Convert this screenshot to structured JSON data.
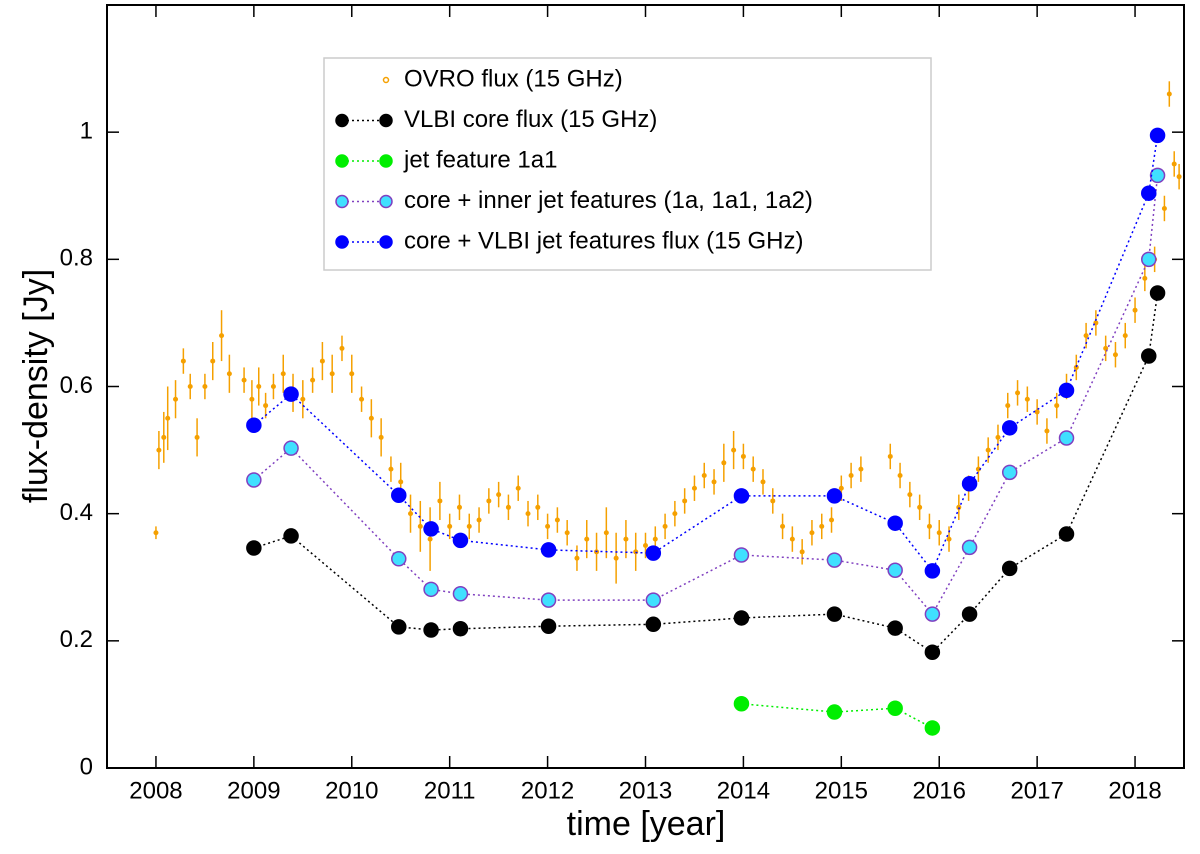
{
  "chart_data": {
    "type": "scatter",
    "xlabel": "time [year]",
    "ylabel": "flux-density [Jy]",
    "xlim": [
      2007.5,
      2018.5
    ],
    "ylim": [
      0,
      1.2
    ],
    "xticks": [
      2008,
      2009,
      2010,
      2011,
      2012,
      2013,
      2014,
      2015,
      2016,
      2017,
      2018
    ],
    "yticks": [
      0,
      0.2,
      0.4,
      0.6,
      0.8,
      1
    ],
    "legend": "upper center",
    "series": [
      {
        "name": "OVRO flux (15 GHz)",
        "color": "#f5a000",
        "marker": "errorbar",
        "x": [
          2008.0,
          2008.03,
          2008.08,
          2008.12,
          2008.2,
          2008.28,
          2008.35,
          2008.42,
          2008.5,
          2008.58,
          2008.67,
          2008.75,
          2008.9,
          2008.98,
          2009.05,
          2009.12,
          2009.2,
          2009.3,
          2009.4,
          2009.5,
          2009.6,
          2009.7,
          2009.8,
          2009.9,
          2010.0,
          2010.1,
          2010.2,
          2010.3,
          2010.4,
          2010.5,
          2010.6,
          2010.7,
          2010.8,
          2010.9,
          2011.0,
          2011.1,
          2011.2,
          2011.3,
          2011.4,
          2011.5,
          2011.6,
          2011.7,
          2011.8,
          2011.9,
          2012.0,
          2012.1,
          2012.2,
          2012.3,
          2012.4,
          2012.5,
          2012.6,
          2012.7,
          2012.8,
          2012.9,
          2013.0,
          2013.1,
          2013.2,
          2013.3,
          2013.4,
          2013.5,
          2013.6,
          2013.7,
          2013.8,
          2013.9,
          2014.0,
          2014.1,
          2014.2,
          2014.3,
          2014.4,
          2014.5,
          2014.6,
          2014.7,
          2014.8,
          2014.9,
          2015.0,
          2015.1,
          2015.2,
          2015.5,
          2015.6,
          2015.7,
          2015.8,
          2015.9,
          2016.0,
          2016.1,
          2016.2,
          2016.3,
          2016.4,
          2016.5,
          2016.6,
          2016.7,
          2016.8,
          2016.9,
          2017.0,
          2017.1,
          2017.2,
          2017.3,
          2017.4,
          2017.5,
          2017.6,
          2017.7,
          2017.8,
          2017.9,
          2018.0,
          2018.1,
          2018.2,
          2018.3,
          2018.35,
          2018.4,
          2018.45
        ],
        "values": [
          0.37,
          0.5,
          0.52,
          0.55,
          0.58,
          0.64,
          0.6,
          0.52,
          0.6,
          0.64,
          0.68,
          0.62,
          0.61,
          0.58,
          0.6,
          0.57,
          0.6,
          0.62,
          0.59,
          0.58,
          0.61,
          0.64,
          0.62,
          0.66,
          0.62,
          0.58,
          0.55,
          0.52,
          0.47,
          0.45,
          0.4,
          0.38,
          0.36,
          0.42,
          0.38,
          0.41,
          0.38,
          0.39,
          0.42,
          0.43,
          0.41,
          0.44,
          0.4,
          0.41,
          0.38,
          0.39,
          0.37,
          0.33,
          0.36,
          0.34,
          0.37,
          0.33,
          0.36,
          0.34,
          0.35,
          0.36,
          0.38,
          0.4,
          0.42,
          0.44,
          0.46,
          0.45,
          0.48,
          0.5,
          0.49,
          0.47,
          0.45,
          0.42,
          0.38,
          0.36,
          0.34,
          0.37,
          0.38,
          0.39,
          0.44,
          0.46,
          0.47,
          0.49,
          0.46,
          0.43,
          0.41,
          0.38,
          0.37,
          0.36,
          0.41,
          0.44,
          0.47,
          0.5,
          0.52,
          0.57,
          0.59,
          0.58,
          0.56,
          0.53,
          0.57,
          0.6,
          0.63,
          0.68,
          0.7,
          0.66,
          0.65,
          0.68,
          0.72,
          0.77,
          0.8,
          0.88,
          1.06,
          0.95,
          0.93
        ],
        "errors": [
          0.01,
          0.03,
          0.04,
          0.05,
          0.03,
          0.02,
          0.02,
          0.03,
          0.02,
          0.03,
          0.04,
          0.03,
          0.02,
          0.03,
          0.03,
          0.02,
          0.02,
          0.03,
          0.03,
          0.03,
          0.02,
          0.03,
          0.03,
          0.02,
          0.03,
          0.02,
          0.03,
          0.03,
          0.02,
          0.03,
          0.03,
          0.04,
          0.05,
          0.03,
          0.02,
          0.02,
          0.02,
          0.02,
          0.02,
          0.02,
          0.02,
          0.02,
          0.02,
          0.02,
          0.02,
          0.02,
          0.02,
          0.02,
          0.03,
          0.03,
          0.04,
          0.04,
          0.03,
          0.03,
          0.02,
          0.02,
          0.02,
          0.02,
          0.02,
          0.02,
          0.02,
          0.02,
          0.03,
          0.03,
          0.02,
          0.02,
          0.02,
          0.02,
          0.02,
          0.02,
          0.02,
          0.02,
          0.02,
          0.02,
          0.02,
          0.02,
          0.02,
          0.02,
          0.02,
          0.02,
          0.02,
          0.02,
          0.02,
          0.02,
          0.02,
          0.02,
          0.02,
          0.02,
          0.02,
          0.02,
          0.02,
          0.02,
          0.02,
          0.02,
          0.02,
          0.02,
          0.02,
          0.02,
          0.02,
          0.02,
          0.02,
          0.02,
          0.02,
          0.02,
          0.02,
          0.02,
          0.02,
          0.02,
          0.02
        ]
      },
      {
        "name": "VLBI core flux (15 GHz)",
        "color": "#000000",
        "edgecolor": "#000000",
        "marker": "dot",
        "x": [
          2009.0,
          2009.38,
          2010.48,
          2010.81,
          2011.11,
          2012.01,
          2013.08,
          2013.98,
          2014.93,
          2015.55,
          2015.93,
          2016.31,
          2016.72,
          2017.3,
          2018.14,
          2018.23
        ],
        "values": [
          0.346,
          0.365,
          0.222,
          0.217,
          0.219,
          0.223,
          0.226,
          0.236,
          0.242,
          0.22,
          0.182,
          0.242,
          0.314,
          0.368,
          0.648,
          0.747
        ]
      },
      {
        "name": "jet feature 1a1",
        "color": "#00ee00",
        "edgecolor": "#00ee00",
        "marker": "dot",
        "x": [
          2013.98,
          2014.93,
          2015.55,
          2015.93
        ],
        "values": [
          0.101,
          0.088,
          0.094,
          0.063
        ]
      },
      {
        "name": "core + inner jet features (1a, 1a1, 1a2)",
        "color": "#40e0ff",
        "edgecolor": "#8040c0",
        "marker": "dot",
        "x": [
          2009.0,
          2009.38,
          2010.48,
          2010.81,
          2011.11,
          2012.01,
          2013.08,
          2013.98,
          2014.93,
          2015.55,
          2015.93,
          2016.31,
          2016.72,
          2017.3,
          2018.14,
          2018.23
        ],
        "values": [
          0.453,
          0.503,
          0.329,
          0.281,
          0.274,
          0.264,
          0.264,
          0.335,
          0.327,
          0.311,
          0.242,
          0.347,
          0.465,
          0.519,
          0.8,
          0.932
        ]
      },
      {
        "name": "core + VLBI jet features flux (15 GHz)",
        "color": "#0000ff",
        "edgecolor": "#0000ff",
        "marker": "dot",
        "x": [
          2009.0,
          2009.38,
          2010.48,
          2010.81,
          2011.11,
          2012.01,
          2013.08,
          2013.98,
          2014.93,
          2015.55,
          2015.93,
          2016.31,
          2016.72,
          2017.3,
          2018.14,
          2018.23
        ],
        "values": [
          0.539,
          0.588,
          0.429,
          0.376,
          0.358,
          0.343,
          0.338,
          0.428,
          0.428,
          0.385,
          0.31,
          0.447,
          0.535,
          0.594,
          0.904,
          0.995
        ]
      }
    ]
  }
}
